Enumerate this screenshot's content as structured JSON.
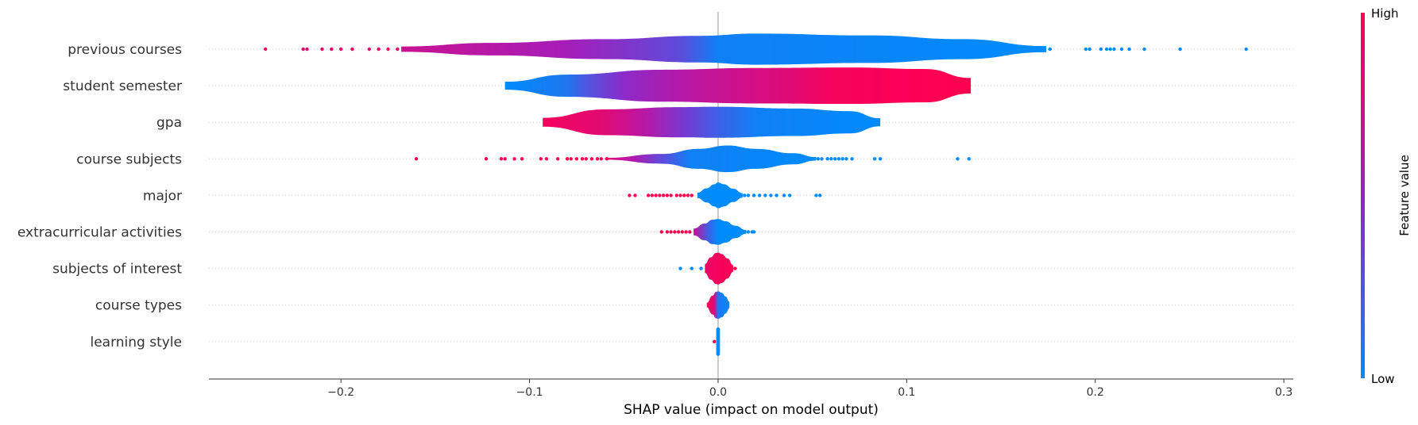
{
  "chart_data": {
    "type": "violin",
    "xlabel": "SHAP value (impact on model output)",
    "xlim": [
      -0.27,
      0.305
    ],
    "xticks": [
      {
        "value": -0.2,
        "label": "−0.2"
      },
      {
        "value": -0.1,
        "label": "−0.1"
      },
      {
        "value": 0.0,
        "label": "0.0"
      },
      {
        "value": 0.1,
        "label": "0.1"
      },
      {
        "value": 0.2,
        "label": "0.2"
      },
      {
        "value": 0.3,
        "label": "0.3"
      }
    ],
    "colorbar": {
      "label": "Feature value",
      "high_label": "High",
      "low_label": "Low",
      "high_color": "#ff0051",
      "low_color": "#008bfb"
    },
    "features": [
      {
        "name": "previous courses",
        "violin": [
          [
            -0.168,
            0.12
          ],
          [
            -0.12,
            0.28
          ],
          [
            -0.06,
            0.45
          ],
          [
            -0.01,
            0.6
          ],
          [
            0.02,
            0.7
          ],
          [
            0.08,
            0.62
          ],
          [
            0.13,
            0.45
          ],
          [
            0.174,
            0.14
          ]
        ],
        "colors": [
          [
            -0.168,
            0.72
          ],
          [
            -0.08,
            0.55
          ],
          [
            -0.02,
            0.3
          ],
          [
            0.0,
            0.05
          ],
          [
            0.175,
            0.0
          ]
        ],
        "points": [
          {
            "x": -0.24,
            "c": 0.9
          },
          {
            "x": -0.22,
            "c": 0.9
          },
          {
            "x": -0.218,
            "c": 0.9
          },
          {
            "x": -0.21,
            "c": 0.9
          },
          {
            "x": -0.205,
            "c": 0.9
          },
          {
            "x": -0.2,
            "c": 0.9
          },
          {
            "x": -0.194,
            "c": 0.9
          },
          {
            "x": -0.185,
            "c": 0.9
          },
          {
            "x": -0.18,
            "c": 0.9
          },
          {
            "x": -0.175,
            "c": 0.9
          },
          {
            "x": -0.17,
            "c": 0.85
          },
          {
            "x": 0.176,
            "c": 0.0
          },
          {
            "x": 0.195,
            "c": 0.0
          },
          {
            "x": 0.197,
            "c": 0.0
          },
          {
            "x": 0.203,
            "c": 0.0
          },
          {
            "x": 0.206,
            "c": 0.0
          },
          {
            "x": 0.208,
            "c": 0.0
          },
          {
            "x": 0.21,
            "c": 0.0
          },
          {
            "x": 0.214,
            "c": 0.0
          },
          {
            "x": 0.218,
            "c": 0.0
          },
          {
            "x": 0.226,
            "c": 0.0
          },
          {
            "x": 0.245,
            "c": 0.0
          },
          {
            "x": 0.28,
            "c": 0.0
          }
        ]
      },
      {
        "name": "student semester",
        "violin": [
          [
            -0.113,
            0.18
          ],
          [
            -0.08,
            0.5
          ],
          [
            -0.03,
            0.72
          ],
          [
            0.02,
            0.8
          ],
          [
            0.07,
            0.82
          ],
          [
            0.11,
            0.75
          ],
          [
            0.134,
            0.35
          ]
        ],
        "colors": [
          [
            -0.113,
            0.0
          ],
          [
            -0.08,
            0.1
          ],
          [
            -0.07,
            0.25
          ],
          [
            -0.05,
            0.45
          ],
          [
            -0.02,
            0.62
          ],
          [
            0.01,
            0.75
          ],
          [
            0.04,
            0.85
          ],
          [
            0.06,
            0.95
          ],
          [
            0.135,
            1.0
          ]
        ],
        "points": []
      },
      {
        "name": "gpa",
        "violin": [
          [
            -0.093,
            0.2
          ],
          [
            -0.06,
            0.58
          ],
          [
            -0.02,
            0.68
          ],
          [
            0.0,
            0.7
          ],
          [
            0.04,
            0.62
          ],
          [
            0.07,
            0.5
          ],
          [
            0.086,
            0.18
          ]
        ],
        "colors": [
          [
            -0.093,
            0.95
          ],
          [
            -0.06,
            0.85
          ],
          [
            -0.04,
            0.65
          ],
          [
            -0.02,
            0.4
          ],
          [
            0.0,
            0.2
          ],
          [
            0.02,
            0.05
          ],
          [
            0.086,
            0.0
          ]
        ],
        "points": []
      },
      {
        "name": "course subjects",
        "violin": [
          [
            -0.06,
            0.04
          ],
          [
            -0.03,
            0.22
          ],
          [
            -0.01,
            0.45
          ],
          [
            0.005,
            0.6
          ],
          [
            0.02,
            0.45
          ],
          [
            0.04,
            0.25
          ],
          [
            0.052,
            0.08
          ]
        ],
        "colors": [
          [
            -0.06,
            0.85
          ],
          [
            -0.045,
            0.6
          ],
          [
            -0.03,
            0.3
          ],
          [
            -0.015,
            0.05
          ],
          [
            0.052,
            0.0
          ]
        ],
        "points": [
          {
            "x": -0.16,
            "c": 1.0
          },
          {
            "x": -0.123,
            "c": 1.0
          },
          {
            "x": -0.115,
            "c": 1.0
          },
          {
            "x": -0.113,
            "c": 1.0
          },
          {
            "x": -0.108,
            "c": 1.0
          },
          {
            "x": -0.104,
            "c": 1.0
          },
          {
            "x": -0.094,
            "c": 1.0
          },
          {
            "x": -0.091,
            "c": 1.0
          },
          {
            "x": -0.085,
            "c": 1.0
          },
          {
            "x": -0.08,
            "c": 1.0
          },
          {
            "x": -0.078,
            "c": 1.0
          },
          {
            "x": -0.075,
            "c": 1.0
          },
          {
            "x": -0.072,
            "c": 1.0
          },
          {
            "x": -0.07,
            "c": 1.0
          },
          {
            "x": -0.067,
            "c": 1.0
          },
          {
            "x": -0.064,
            "c": 1.0
          },
          {
            "x": -0.062,
            "c": 1.0
          },
          {
            "x": -0.059,
            "c": 1.0
          },
          {
            "x": 0.053,
            "c": 0.0
          },
          {
            "x": 0.055,
            "c": 0.0
          },
          {
            "x": 0.058,
            "c": 0.0
          },
          {
            "x": 0.06,
            "c": 0.0
          },
          {
            "x": 0.062,
            "c": 0.0
          },
          {
            "x": 0.064,
            "c": 0.0
          },
          {
            "x": 0.066,
            "c": 0.0
          },
          {
            "x": 0.068,
            "c": 0.0
          },
          {
            "x": 0.071,
            "c": 0.0
          },
          {
            "x": 0.083,
            "c": 0.0
          },
          {
            "x": 0.086,
            "c": 0.0
          },
          {
            "x": 0.127,
            "c": 0.0
          },
          {
            "x": 0.133,
            "c": 0.0
          }
        ]
      },
      {
        "name": "major",
        "violin": [
          [
            -0.011,
            0.12
          ],
          [
            -0.006,
            0.32
          ],
          [
            -0.002,
            0.5
          ],
          [
            0.0,
            0.58
          ],
          [
            0.003,
            0.5
          ],
          [
            0.008,
            0.3
          ],
          [
            0.013,
            0.1
          ]
        ],
        "colors": [
          [
            -0.011,
            0.0
          ],
          [
            0.013,
            0.0
          ]
        ],
        "points": [
          {
            "x": -0.047,
            "c": 1.0
          },
          {
            "x": -0.044,
            "c": 1.0
          },
          {
            "x": -0.037,
            "c": 1.0
          },
          {
            "x": -0.035,
            "c": 1.0
          },
          {
            "x": -0.033,
            "c": 1.0
          },
          {
            "x": -0.031,
            "c": 1.0
          },
          {
            "x": -0.029,
            "c": 1.0
          },
          {
            "x": -0.027,
            "c": 1.0
          },
          {
            "x": -0.025,
            "c": 1.0
          },
          {
            "x": -0.022,
            "c": 1.0
          },
          {
            "x": -0.02,
            "c": 1.0
          },
          {
            "x": -0.018,
            "c": 1.0
          },
          {
            "x": -0.016,
            "c": 1.0
          },
          {
            "x": -0.014,
            "c": 1.0
          },
          {
            "x": 0.014,
            "c": 0.0
          },
          {
            "x": 0.016,
            "c": 0.0
          },
          {
            "x": 0.019,
            "c": 0.0
          },
          {
            "x": 0.022,
            "c": 0.0
          },
          {
            "x": 0.025,
            "c": 0.0
          },
          {
            "x": 0.028,
            "c": 0.0
          },
          {
            "x": 0.031,
            "c": 0.0
          },
          {
            "x": 0.035,
            "c": 0.0
          },
          {
            "x": 0.038,
            "c": 0.0
          },
          {
            "x": 0.052,
            "c": 0.0
          },
          {
            "x": 0.054,
            "c": 0.0
          }
        ]
      },
      {
        "name": "extracurricular activities",
        "violin": [
          [
            -0.013,
            0.15
          ],
          [
            -0.007,
            0.38
          ],
          [
            -0.003,
            0.55
          ],
          [
            0.0,
            0.58
          ],
          [
            0.004,
            0.48
          ],
          [
            0.009,
            0.28
          ],
          [
            0.015,
            0.08
          ]
        ],
        "colors": [
          [
            -0.013,
            0.7
          ],
          [
            -0.005,
            0.2
          ],
          [
            0.0,
            0.0
          ],
          [
            0.015,
            0.0
          ]
        ],
        "points": [
          {
            "x": -0.03,
            "c": 1.0
          },
          {
            "x": -0.027,
            "c": 1.0
          },
          {
            "x": -0.025,
            "c": 1.0
          },
          {
            "x": -0.023,
            "c": 1.0
          },
          {
            "x": -0.021,
            "c": 1.0
          },
          {
            "x": -0.019,
            "c": 1.0
          },
          {
            "x": -0.017,
            "c": 1.0
          },
          {
            "x": -0.015,
            "c": 1.0
          },
          {
            "x": 0.016,
            "c": 0.0
          },
          {
            "x": 0.018,
            "c": 0.0
          },
          {
            "x": 0.019,
            "c": 0.0
          }
        ]
      },
      {
        "name": "subjects of interest",
        "violin": [
          [
            -0.007,
            0.2
          ],
          [
            -0.004,
            0.5
          ],
          [
            -0.001,
            0.7
          ],
          [
            0.0,
            0.72
          ],
          [
            0.002,
            0.65
          ],
          [
            0.005,
            0.45
          ],
          [
            0.008,
            0.15
          ]
        ],
        "colors": [
          [
            -0.007,
            0.9
          ],
          [
            0.008,
            1.0
          ]
        ],
        "points": [
          {
            "x": -0.02,
            "c": 0.0
          },
          {
            "x": -0.014,
            "c": 0.0
          },
          {
            "x": -0.009,
            "c": 0.0
          },
          {
            "x": 0.009,
            "c": 1.0
          }
        ]
      },
      {
        "name": "course types",
        "violin": [
          [
            -0.006,
            0.1
          ],
          [
            -0.003,
            0.42
          ],
          [
            -0.001,
            0.6
          ],
          [
            0.0,
            0.62
          ],
          [
            0.002,
            0.55
          ],
          [
            0.004,
            0.38
          ],
          [
            0.006,
            0.15
          ]
        ],
        "colors": [
          [
            -0.006,
            1.0
          ],
          [
            -0.002,
            0.8
          ],
          [
            0.0,
            0.1
          ],
          [
            0.006,
            0.0
          ]
        ],
        "points": []
      },
      {
        "name": "learning style",
        "violin": [
          [
            -0.001,
            0.6
          ],
          [
            0.0,
            0.65
          ],
          [
            0.001,
            0.6
          ]
        ],
        "colors": [
          [
            -0.001,
            0.0
          ],
          [
            0.001,
            0.0
          ]
        ],
        "points": [
          {
            "x": -0.002,
            "c": 1.0
          }
        ]
      }
    ]
  }
}
